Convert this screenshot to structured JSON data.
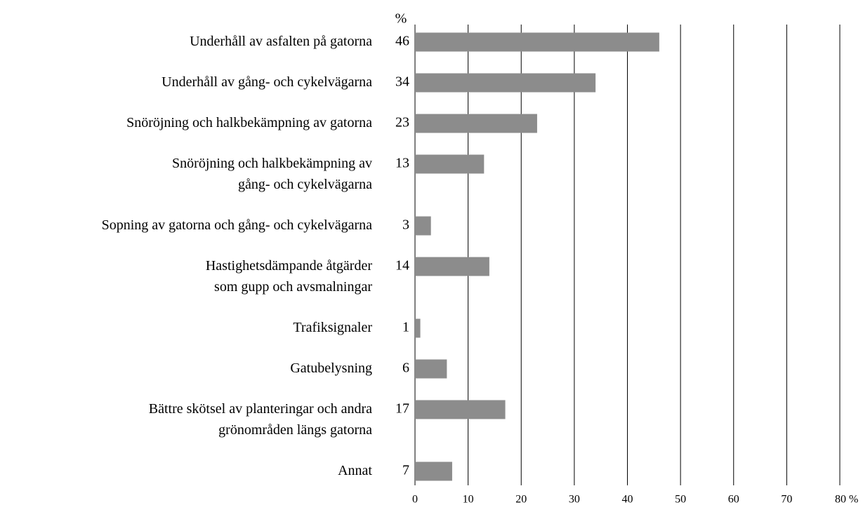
{
  "chart_data": {
    "type": "bar",
    "orientation": "horizontal",
    "axis_label": "%",
    "categories": [
      "Underhåll av asfalten på gatorna",
      "Underhåll av gång- och cykelvägarna",
      "Snöröjning och halkbekämpning av gatorna",
      "Snöröjning och halkbekämpning av\ngång- och cykelvägarna",
      "Sopning av gatorna och gång- och cykelvägarna",
      "Hastighetsdämpande åtgärder\nsom gupp och avsmalningar",
      "Trafiksignaler",
      "Gatubelysning",
      "Bättre skötsel av planteringar och andra\ngrönområden längs gatorna",
      "Annat"
    ],
    "values": [
      46,
      34,
      23,
      13,
      3,
      14,
      1,
      6,
      17,
      7
    ],
    "color": "#8c8c8c",
    "xlim": [
      0,
      80
    ],
    "xticks": [
      0,
      10,
      20,
      30,
      40,
      50,
      60,
      70,
      {
        "value": 80,
        "label": "80 %"
      }
    ],
    "grid": true
  }
}
